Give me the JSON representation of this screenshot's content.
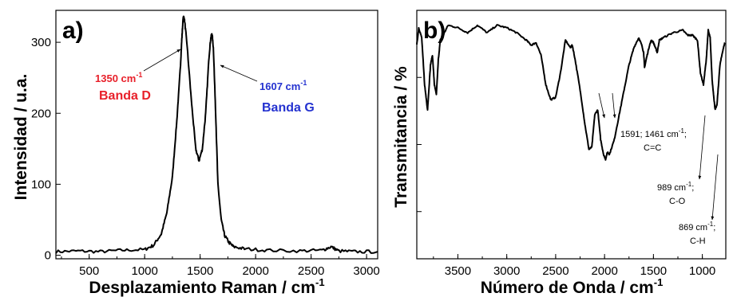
{
  "chart_data": [
    {
      "panel_label": "a)",
      "type": "line",
      "xlabel": "Desplazamiento Raman / cm",
      "xlabel_sup": "-1",
      "ylabel": "Intensidad / u.a.",
      "xlim": [
        200,
        3100
      ],
      "ylim": [
        -5,
        345
      ],
      "xticks": [
        500,
        1000,
        1500,
        2000,
        2500,
        3000
      ],
      "xtick_labels": [
        "500",
        "1000",
        "1500",
        "2000",
        "2500",
        "3000"
      ],
      "yticks": [
        0,
        100,
        200,
        300
      ],
      "ytick_labels": [
        "0",
        "100",
        "200",
        "300"
      ],
      "grid": false,
      "series": [
        {
          "color": "#000000",
          "x": [
            200,
            400,
            600,
            800,
            1000,
            1080,
            1150,
            1200,
            1250,
            1290,
            1320,
            1335,
            1345,
            1350,
            1360,
            1380,
            1420,
            1460,
            1490,
            1520,
            1550,
            1580,
            1595,
            1607,
            1620,
            1640,
            1660,
            1690,
            1720,
            1760,
            1800,
            1900,
            2100,
            2400,
            2600,
            2680,
            2750,
            2900,
            3100
          ],
          "y": [
            5,
            6,
            5,
            7,
            8,
            14,
            30,
            60,
            110,
            190,
            260,
            305,
            330,
            337,
            330,
            300,
            220,
            150,
            133,
            150,
            200,
            280,
            305,
            313,
            290,
            200,
            100,
            50,
            28,
            18,
            12,
            9,
            7,
            6,
            7,
            12,
            6,
            5,
            5
          ]
        }
      ],
      "annotations": [
        {
          "text": "1350 cm",
          "sup": "-1",
          "color": "#e8202a",
          "x": 1350,
          "y": 337
        },
        {
          "text": "Banda D",
          "color": "#e8202a"
        },
        {
          "text": "1607 cm",
          "sup": "-1",
          "color": "#2432d0",
          "x": 1607,
          "y": 313
        },
        {
          "text": "Banda G",
          "color": "#2432d0"
        }
      ]
    },
    {
      "panel_label": "b)",
      "type": "line",
      "xlabel": "Número de Onda / cm",
      "xlabel_sup": "-1",
      "ylabel": "Transmitancia / %",
      "xlim": [
        3920,
        760
      ],
      "ylim": [
        0,
        1
      ],
      "x_reversed": true,
      "xticks": [
        3500,
        3000,
        2500,
        2000,
        1500,
        1000
      ],
      "xtick_labels": [
        "3500",
        "3000",
        "2500",
        "2000",
        "1500",
        "1000"
      ],
      "yticks": [
        0.19,
        0.46,
        0.73
      ],
      "ytick_labels": [
        "",
        "",
        ""
      ],
      "grid": false,
      "series": [
        {
          "color": "#000000",
          "x": [
            3920,
            3900,
            3870,
            3840,
            3810,
            3780,
            3760,
            3740,
            3720,
            3700,
            3680,
            3650,
            3600,
            3500,
            3400,
            3300,
            3200,
            3100,
            3000,
            2900,
            2800,
            2750,
            2700,
            2650,
            2600,
            2550,
            2500,
            2450,
            2400,
            2350,
            2330,
            2300,
            2250,
            2200,
            2160,
            2130,
            2100,
            2070,
            2040,
            2010,
            1990,
            1970,
            1950,
            1900,
            1850,
            1800,
            1750,
            1700,
            1650,
            1620,
            1600,
            1591,
            1570,
            1540,
            1520,
            1500,
            1480,
            1461,
            1440,
            1400,
            1300,
            1200,
            1150,
            1100,
            1050,
            1020,
            989,
            960,
            940,
            920,
            900,
            880,
            869,
            850,
            820,
            790,
            770
          ],
          "y": [
            0.86,
            0.93,
            0.89,
            0.7,
            0.6,
            0.78,
            0.82,
            0.7,
            0.66,
            0.8,
            0.88,
            0.9,
            0.94,
            0.93,
            0.91,
            0.94,
            0.91,
            0.94,
            0.93,
            0.91,
            0.88,
            0.86,
            0.87,
            0.82,
            0.7,
            0.64,
            0.65,
            0.75,
            0.88,
            0.85,
            0.86,
            0.8,
            0.68,
            0.54,
            0.44,
            0.45,
            0.58,
            0.6,
            0.48,
            0.42,
            0.4,
            0.43,
            0.42,
            0.48,
            0.58,
            0.68,
            0.78,
            0.85,
            0.89,
            0.86,
            0.83,
            0.77,
            0.81,
            0.86,
            0.88,
            0.87,
            0.85,
            0.83,
            0.88,
            0.89,
            0.91,
            0.92,
            0.9,
            0.9,
            0.88,
            0.75,
            0.7,
            0.8,
            0.92,
            0.89,
            0.72,
            0.64,
            0.6,
            0.62,
            0.78,
            0.84,
            0.87
          ]
        }
      ],
      "annotations": [
        {
          "text": "1591; 1461 cm",
          "sup": "-1",
          "suffix": ";",
          "color": "#000000",
          "x": 1526,
          "y": 0.78
        },
        {
          "text": "C=C",
          "color": "#000000"
        },
        {
          "text": "989 cm",
          "sup": "-1",
          "suffix": ";",
          "color": "#000000",
          "x": 989,
          "y": 0.7
        },
        {
          "text": "C-O",
          "color": "#000000"
        },
        {
          "text": "869 cm",
          "sup": "-1",
          "suffix": ";",
          "color": "#000000",
          "x": 869,
          "y": 0.6
        },
        {
          "text": "C-H",
          "color": "#000000"
        }
      ]
    }
  ]
}
